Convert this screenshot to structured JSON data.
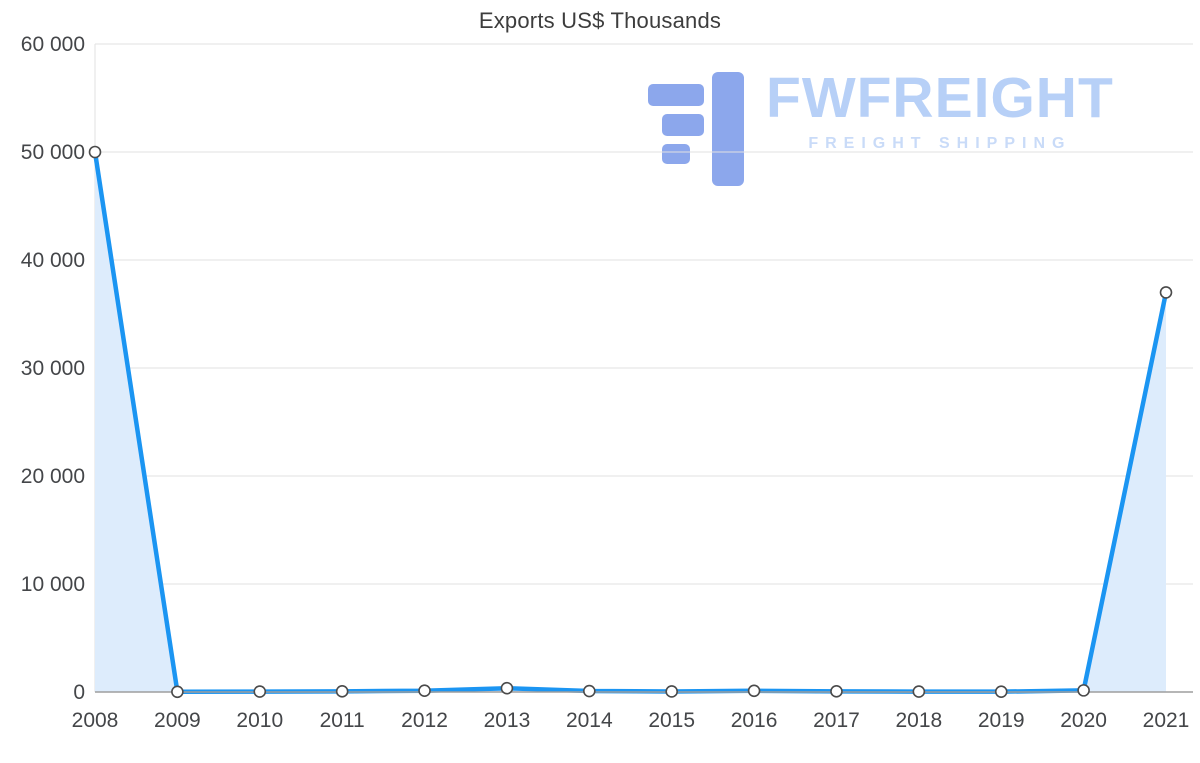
{
  "title": "Exports US$ Thousands",
  "watermark": {
    "brand": "FWFREIGHT",
    "tagline": "FREIGHT SHIPPING",
    "icon": "fwfreight-f-stripes-logo",
    "icon_color": "#8ca7ec",
    "brand_color": "#b7d0f7",
    "tagline_color": "#c9dbf8"
  },
  "colors": {
    "line": "#1b95f2",
    "area_fill": "#ddecfc",
    "grid": "#e2e2e2",
    "axis_line": "#9e9e9e",
    "tick_text": "#444649",
    "point_fill": "#ffffff",
    "point_stroke": "#4a4a4a",
    "title_text": "#3d3d3d"
  },
  "chart_data": {
    "type": "area-line",
    "title": "Exports US$ Thousands",
    "categories": [
      "2008",
      "2009",
      "2010",
      "2011",
      "2012",
      "2013",
      "2014",
      "2015",
      "2016",
      "2017",
      "2018",
      "2019",
      "2020",
      "2021"
    ],
    "values": [
      50000,
      20,
      40,
      60,
      120,
      350,
      90,
      50,
      110,
      60,
      40,
      30,
      150,
      37000
    ],
    "xlabel": "",
    "ylabel": "",
    "ylim": [
      0,
      60000
    ],
    "yticks": [
      0,
      10000,
      20000,
      30000,
      40000,
      50000,
      60000
    ],
    "ytick_labels": [
      "0",
      "10 000",
      "20 000",
      "30 000",
      "40 000",
      "50 000",
      "60 000"
    ],
    "grid": true,
    "legend": "none",
    "marker": "circle"
  }
}
